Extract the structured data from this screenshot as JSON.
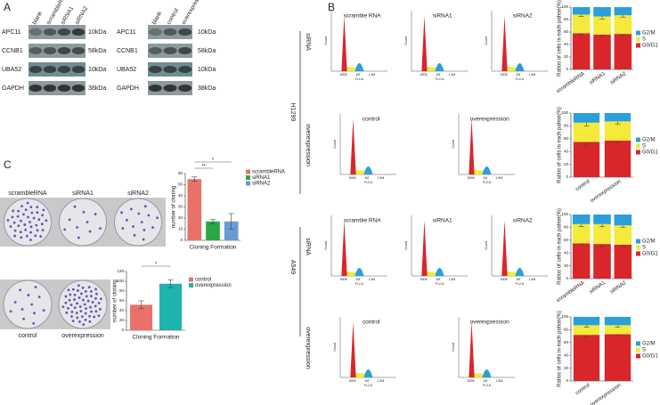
{
  "figure": {
    "panel_labels": [
      "A",
      "B",
      "C"
    ],
    "blots": [
      {
        "lanes": [
          "blank",
          "scrambleRNA",
          "siRNA1",
          "siRNA2"
        ],
        "rows": [
          {
            "protein": "APC11",
            "size": "10kDa"
          },
          {
            "protein": "CCNB1",
            "size": "58kDa"
          },
          {
            "protein": "UBA52",
            "size": "10kDa"
          },
          {
            "protein": "GAPDH",
            "size": "38kDa"
          }
        ]
      },
      {
        "lanes": [
          "blank",
          "control",
          "overexpression"
        ],
        "rows": [
          {
            "protein": "APC11",
            "size": "10kDa"
          },
          {
            "protein": "CCNB1",
            "size": "58kDa"
          },
          {
            "protein": "UBA52",
            "size": "10kDa"
          },
          {
            "protein": "GAPDH",
            "size": "38kDa"
          }
        ]
      }
    ],
    "flow": {
      "groups": [
        {
          "cell_line": "H1299",
          "rows": [
            {
              "label": "siRNA",
              "samples": [
                "scramble RNA",
                "siRNA1",
                "siRNA2"
              ]
            },
            {
              "label": "overexpression",
              "samples": [
                "control",
                "overexpression"
              ]
            }
          ]
        },
        {
          "cell_line": "A549",
          "rows": [
            {
              "label": "siRNA",
              "samples": [
                "scramble RNA",
                "siRNA1",
                "siRNA2"
              ]
            },
            {
              "label": "overexpression",
              "samples": [
                "control",
                "overexpression"
              ]
            }
          ]
        }
      ],
      "xticks": [
        "500K",
        "1M",
        "1.5M"
      ],
      "xlabel": "FL2-A",
      "ylabel": "Count"
    },
    "colony_photos": [
      [
        "scrambleRNA",
        "siRNA1",
        "siRNA2"
      ],
      [
        "control",
        "overexpression"
      ]
    ]
  },
  "chart_data": [
    {
      "type": "stacked_bar",
      "categories": [
        "scrambleRNA",
        "siRNA1",
        "siRNA2"
      ],
      "ylabel": "Ratios of cells in each pahse(%)",
      "ylim": [
        0,
        100
      ],
      "yticks": [
        0,
        20,
        40,
        60,
        80,
        100
      ],
      "series": [
        {
          "name": "G2/M",
          "color": "#2b9fd9",
          "values": [
            12,
            15,
            13
          ]
        },
        {
          "name": "S",
          "color": "#f4ea3b",
          "values": [
            30,
            29,
            30
          ],
          "errors": [
            3,
            4,
            3
          ]
        },
        {
          "name": "G0/G1",
          "color": "#d8262b",
          "values": [
            58,
            56,
            57
          ],
          "errors": [
            2,
            2,
            2
          ]
        }
      ]
    },
    {
      "type": "stacked_bar",
      "categories": [
        "control",
        "overexpression"
      ],
      "ylabel": "Ratios of cells in each pahse(%)",
      "ylim": [
        0,
        100
      ],
      "yticks": [
        0,
        20,
        40,
        60,
        80,
        100
      ],
      "series": [
        {
          "name": "G2/M",
          "color": "#2b9fd9",
          "values": [
            15,
            13
          ]
        },
        {
          "name": "S",
          "color": "#f4ea3b",
          "values": [
            30,
            30
          ],
          "errors": [
            5,
            4
          ]
        },
        {
          "name": "G0/G1",
          "color": "#d8262b",
          "values": [
            55,
            57
          ],
          "errors": [
            6,
            3
          ]
        }
      ]
    },
    {
      "type": "stacked_bar",
      "categories": [
        "scrambleRNA",
        "siRNA1",
        "siRNA2"
      ],
      "ylabel": "Ratios of cells in each pahse(%)",
      "ylim": [
        0,
        100
      ],
      "yticks": [
        0,
        20,
        40,
        60,
        80,
        100
      ],
      "series": [
        {
          "name": "G2/M",
          "color": "#2b9fd9",
          "values": [
            15,
            15,
            17
          ]
        },
        {
          "name": "S",
          "color": "#f4ea3b",
          "values": [
            30,
            31,
            30
          ],
          "errors": [
            4,
            4,
            3
          ]
        },
        {
          "name": "G0/G1",
          "color": "#d8262b",
          "values": [
            55,
            54,
            53
          ],
          "errors": [
            2,
            4,
            3
          ]
        }
      ]
    },
    {
      "type": "stacked_bar",
      "categories": [
        "control",
        "overexpression"
      ],
      "ylabel": "Ratios of cells in each pahse(%)",
      "ylim": [
        0,
        100
      ],
      "yticks": [
        0,
        20,
        40,
        60,
        80,
        100
      ],
      "series": [
        {
          "name": "G2/M",
          "color": "#2b9fd9",
          "values": [
            13,
            13
          ]
        },
        {
          "name": "S",
          "color": "#f4ea3b",
          "values": [
            15,
            14
          ],
          "errors": [
            3,
            3
          ]
        },
        {
          "name": "G0/G1",
          "color": "#d8262b",
          "values": [
            72,
            73
          ],
          "errors": [
            3,
            2
          ]
        }
      ]
    },
    {
      "type": "bar",
      "categories": [
        "scrambleRNA",
        "siRNA1",
        "siRNA2"
      ],
      "values": [
        55,
        17,
        17
      ],
      "errors": [
        2,
        2,
        7
      ],
      "colors": [
        "#e8726a",
        "#2aa845",
        "#6a9bd3"
      ],
      "ylabel": "number of cloning",
      "xlabel": "Cloning Formation",
      "ylim": [
        0,
        60
      ],
      "yticks": [
        0,
        10,
        20,
        30,
        40,
        50,
        60
      ],
      "annotations": [
        {
          "text": "**",
          "categories": [
            "scrambleRNA",
            "siRNA1"
          ]
        },
        {
          "text": "*",
          "categories": [
            "scrambleRNA",
            "siRNA2"
          ]
        }
      ]
    },
    {
      "type": "bar",
      "categories": [
        "control",
        "overexpression"
      ],
      "values": [
        52,
        95
      ],
      "errors": [
        8,
        8
      ],
      "colors": [
        "#e8726a",
        "#1fb3ad"
      ],
      "ylabel": "number of cloning",
      "xlabel": "Cloning Formation",
      "ylim": [
        0,
        120
      ],
      "yticks": [
        0,
        20,
        40,
        60,
        80,
        100,
        120
      ],
      "annotations": [
        {
          "text": "*",
          "categories": [
            "control",
            "overexpression"
          ]
        }
      ]
    }
  ]
}
